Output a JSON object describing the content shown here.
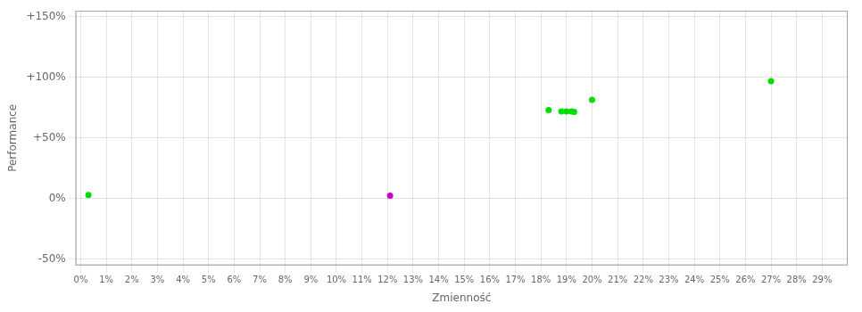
{
  "chart_data": {
    "type": "scatter",
    "xlabel": "Zmienność",
    "ylabel": "Performance",
    "xlim": [
      -0.002,
      0.3
    ],
    "ylim": [
      -0.55,
      1.55
    ],
    "xticks": [
      {
        "value": 0,
        "label": "0%"
      },
      {
        "value": 0.01,
        "label": "1%"
      },
      {
        "value": 0.02,
        "label": "2%"
      },
      {
        "value": 0.03,
        "label": "3%"
      },
      {
        "value": 0.04,
        "label": "4%"
      },
      {
        "value": 0.05,
        "label": "5%"
      },
      {
        "value": 0.06,
        "label": "6%"
      },
      {
        "value": 0.07,
        "label": "7%"
      },
      {
        "value": 0.08,
        "label": "8%"
      },
      {
        "value": 0.09,
        "label": "9%"
      },
      {
        "value": 0.1,
        "label": "10%"
      },
      {
        "value": 0.11,
        "label": "11%"
      },
      {
        "value": 0.12,
        "label": "12%"
      },
      {
        "value": 0.13,
        "label": "13%"
      },
      {
        "value": 0.14,
        "label": "14%"
      },
      {
        "value": 0.15,
        "label": "15%"
      },
      {
        "value": 0.16,
        "label": "16%"
      },
      {
        "value": 0.17,
        "label": "17%"
      },
      {
        "value": 0.18,
        "label": "18%"
      },
      {
        "value": 0.19,
        "label": "19%"
      },
      {
        "value": 0.2,
        "label": "20%"
      },
      {
        "value": 0.21,
        "label": "21%"
      },
      {
        "value": 0.22,
        "label": "22%"
      },
      {
        "value": 0.23,
        "label": "23%"
      },
      {
        "value": 0.24,
        "label": "24%"
      },
      {
        "value": 0.25,
        "label": "25%"
      },
      {
        "value": 0.26,
        "label": "26%"
      },
      {
        "value": 0.27,
        "label": "27%"
      },
      {
        "value": 0.28,
        "label": "28%"
      },
      {
        "value": 0.29,
        "label": "29%"
      }
    ],
    "yticks": [
      {
        "value": -0.5,
        "label": "-50%"
      },
      {
        "value": 0.0,
        "label": "0%"
      },
      {
        "value": 0.5,
        "label": "+50%"
      },
      {
        "value": 1.0,
        "label": "+100%"
      },
      {
        "value": 1.5,
        "label": "+150%"
      }
    ],
    "grid": true,
    "series": [
      {
        "color": "#00dd00",
        "x": [
          0.003,
          0.183,
          0.188,
          0.19,
          0.192,
          0.193,
          0.2,
          0.27
        ],
        "values": [
          0.03,
          0.73,
          0.72,
          0.72,
          0.72,
          0.715,
          0.815,
          0.97
        ]
      },
      {
        "color": "#cc00cc",
        "x": [
          0.121
        ],
        "values": [
          0.025
        ]
      }
    ]
  }
}
